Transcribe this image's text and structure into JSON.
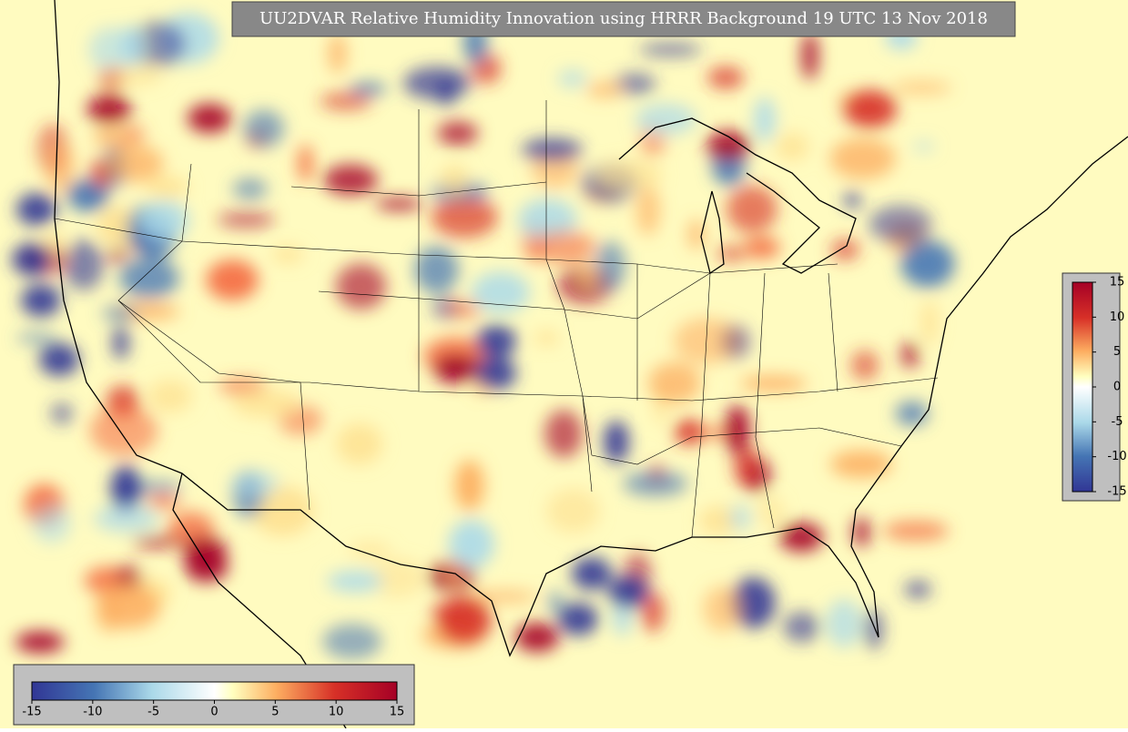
{
  "map": {
    "title": "UU2DVAR Relative Humidity Innovation using HRRR Background 19 UTC 13 Nov 2018",
    "colorbar_horizontal": {
      "range": [
        -15,
        15
      ],
      "ticks": [
        -15,
        -10,
        -5,
        0,
        5,
        10,
        15
      ]
    },
    "colorbar_vertical": {
      "range": [
        -15,
        15
      ],
      "ticks": [
        -15,
        -10,
        -5,
        0,
        5,
        10,
        15
      ]
    }
  }
}
